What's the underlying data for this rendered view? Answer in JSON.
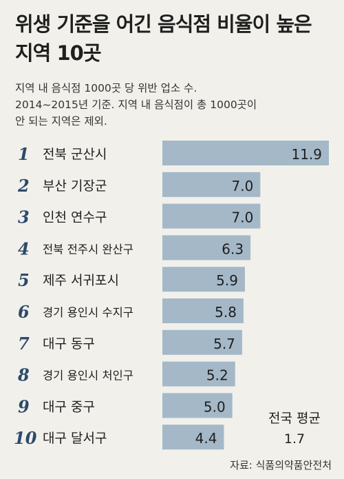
{
  "chart_data": {
    "type": "bar",
    "orientation": "horizontal",
    "title": "위생 기준을 어긴 음식점 비율이 높은 지역 10곳",
    "subtitle": [
      "지역 내 음식점 1000곳 당 위반 업소 수.",
      "2014~2015년 기준. 지역 내 음식점이 총 1000곳이",
      "안 되는 지역은 제외."
    ],
    "ranks": [
      "1",
      "2",
      "3",
      "4",
      "5",
      "6",
      "7",
      "8",
      "9",
      "10"
    ],
    "categories": [
      "전북 군산시",
      "부산 기장군",
      "인천 연수구",
      "전북 전주시 완산구",
      "제주 서귀포시",
      "경기 용인시 수지구",
      "대구 동구",
      "경기 용인시 처인구",
      "대구 중구",
      "대구 달서구"
    ],
    "values": [
      11.9,
      7.0,
      7.0,
      6.3,
      5.9,
      5.8,
      5.7,
      5.2,
      5.0,
      4.4
    ],
    "value_labels": [
      "11.9",
      "7.0",
      "7.0",
      "6.3",
      "5.9",
      "5.8",
      "5.7",
      "5.2",
      "5.0",
      "4.4"
    ],
    "bar_color": "#a4b8c8",
    "rank_color": "#2c4a6a",
    "average_label": "전국 평균",
    "average_value": "1.7",
    "source": "자료: 식품의약품안전처"
  }
}
